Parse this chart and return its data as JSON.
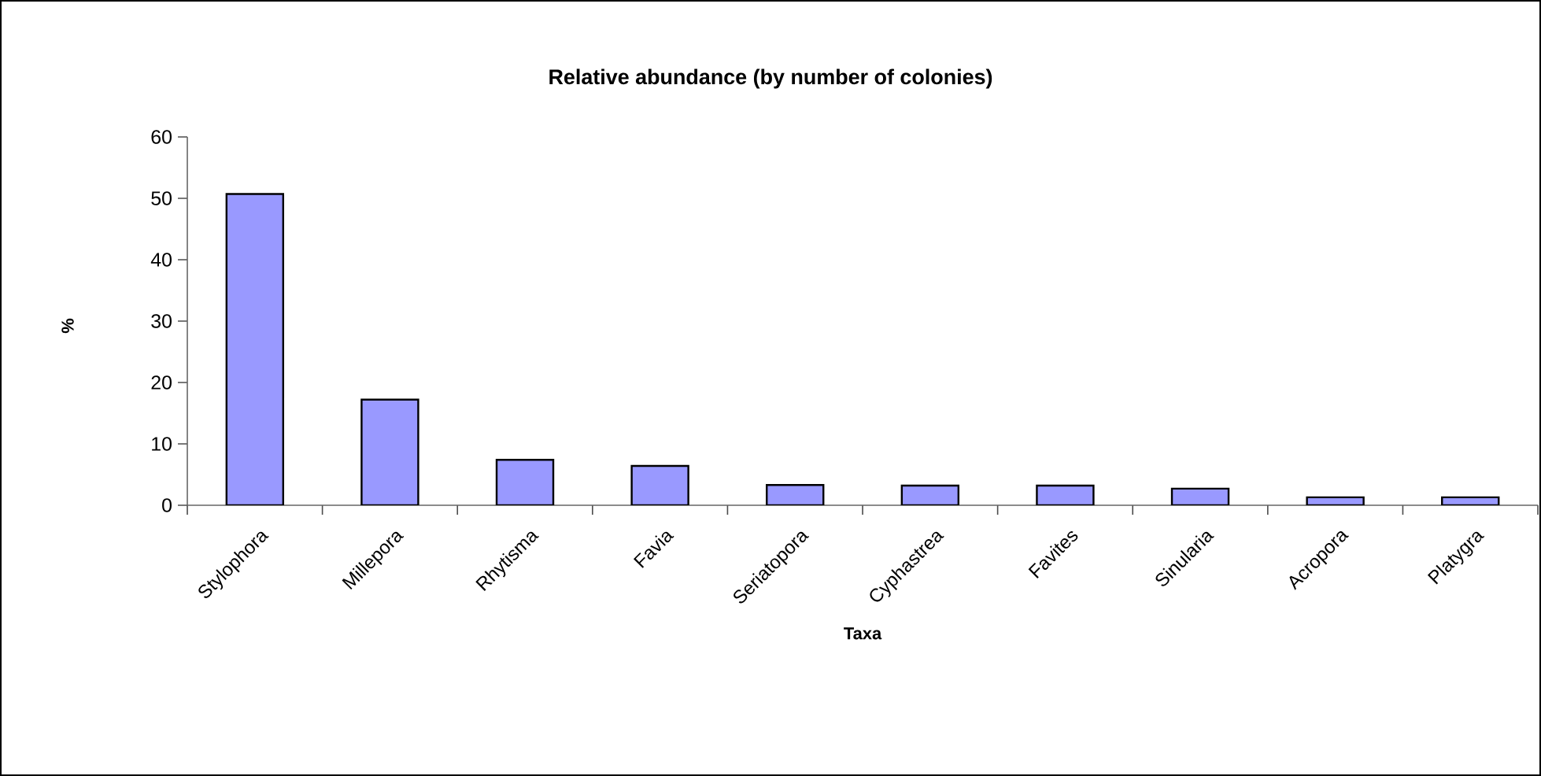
{
  "chart_data": {
    "type": "bar",
    "title": "Relative abundance (by number of colonies)",
    "xlabel": "Taxa",
    "ylabel": "%",
    "categories": [
      "Stylophora",
      "Millepora",
      "Rhytisma",
      "Favia",
      "Seriatopora",
      "Cyphastrea",
      "Favites",
      "Sinularia",
      "Acropora",
      "Platygra"
    ],
    "values": [
      50.7,
      17.2,
      7.4,
      6.4,
      3.3,
      3.2,
      3.2,
      2.7,
      1.3,
      1.3
    ],
    "color": "#9999ff",
    "ylim": [
      0,
      60
    ],
    "yticks": [
      0,
      10,
      20,
      30,
      40,
      50,
      60
    ]
  }
}
